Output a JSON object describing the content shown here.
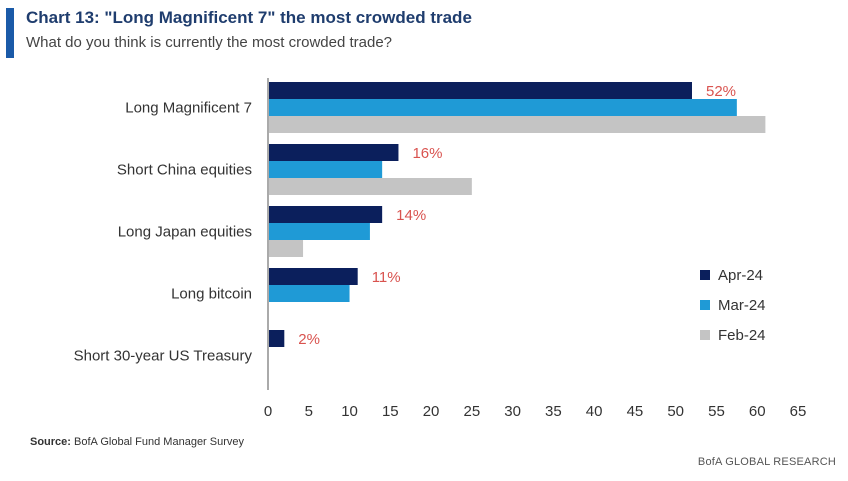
{
  "header": {
    "title": "Chart 13: \"Long Magnificent 7\" the most crowded trade",
    "subtitle": "What do you think is currently the most crowded trade?",
    "accent_color": "#1a5aa8"
  },
  "footer": {
    "source_label": "Source:",
    "source_text": "BofA Global Fund Manager Survey",
    "brand": "BofA GLOBAL RESEARCH"
  },
  "chart_data": {
    "type": "bar",
    "orientation": "horizontal",
    "title": "Chart 13: \"Long Magnificent 7\" the most crowded trade",
    "subtitle": "What do you think is currently the most crowded trade?",
    "categories": [
      "Long Magnificent 7",
      "Short China equities",
      "Long Japan equities",
      "Long bitcoin",
      "Short 30-year US Treasury"
    ],
    "series": [
      {
        "name": "Apr-24",
        "color": "#0b1f5c",
        "values": [
          52,
          16,
          14,
          11,
          2
        ]
      },
      {
        "name": "Mar-24",
        "color": "#1f9ad6",
        "values": [
          57.5,
          14,
          12.5,
          10,
          null
        ]
      },
      {
        "name": "Feb-24",
        "color": "#c4c4c4",
        "values": [
          61,
          25,
          4.3,
          null,
          null
        ]
      }
    ],
    "data_labels": [
      "52%",
      "16%",
      "14%",
      "11%",
      "2%"
    ],
    "xlim": [
      0,
      65
    ],
    "x_ticks": [
      "0",
      "5",
      "10",
      "15",
      "20",
      "25",
      "30",
      "35",
      "40",
      "45",
      "50",
      "55",
      "60",
      "65"
    ],
    "grid": false,
    "legend_position": "right"
  }
}
